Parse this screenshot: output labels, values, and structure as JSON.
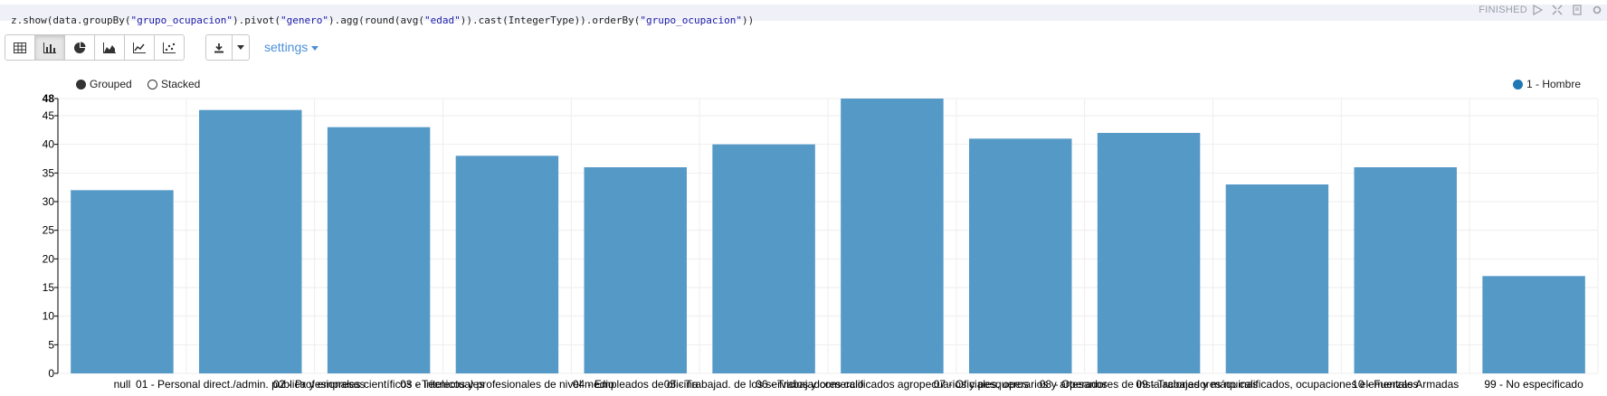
{
  "code": {
    "seg1": "z.show(data.groupBy(",
    "str1": "\"grupo_ocupacion\"",
    "seg2": ").pivot(",
    "str2": "\"genero\"",
    "seg3": ").agg(round(avg(",
    "str3": "\"edad\"",
    "seg4": ")).cast(IntegerType)).orderBy(",
    "str4": "\"grupo_ocupacion\"",
    "seg5": "))"
  },
  "status": "FINISHED",
  "toolbar": {
    "buttons": [
      "table-icon",
      "bar-chart-icon",
      "pie-chart-icon",
      "area-chart-icon",
      "line-chart-icon",
      "scatter-chart-icon"
    ],
    "active": "bar-chart-icon",
    "download_icon": "download-icon",
    "dropdown_icon": "caret-down-icon"
  },
  "settings_label": "settings",
  "options": {
    "grouped": "Grouped",
    "stacked": "Stacked",
    "selected": "grouped"
  },
  "colors": {
    "bar": "#5599c7",
    "accent": "#1f77b4"
  },
  "chart_data": {
    "type": "bar",
    "categories": [
      "null",
      "01 - Personal direct./admin. pública y empresas",
      "02 - Profesionales científicos e intelectuales",
      "03 - Técnicos y profesionales de nivel medio",
      "04 - Empleados de oficina",
      "05 - Trabajad. de los servicios y comercio",
      "06 - Trabajadores calificados agropecuarios y pesqueros",
      "07 - Oficiales, operarios y artesanos",
      "08 - Operadores de instalaciones y máquinas",
      "09 - Trabajadores no calificados, ocupaciones elementales",
      "10 - Fuerzas Armadas",
      "99 - No especificado"
    ],
    "series": [
      {
        "name": "1 - Hombre",
        "values": [
          32,
          46,
          43,
          38,
          36,
          40,
          48,
          41,
          42,
          33,
          36,
          17
        ]
      }
    ],
    "yticks": [
      "0",
      "5",
      "10",
      "15",
      "20",
      "25",
      "30",
      "35",
      "40",
      "45",
      "48"
    ],
    "ylim": [
      0,
      48
    ],
    "grid": true,
    "legend": "top-right"
  }
}
